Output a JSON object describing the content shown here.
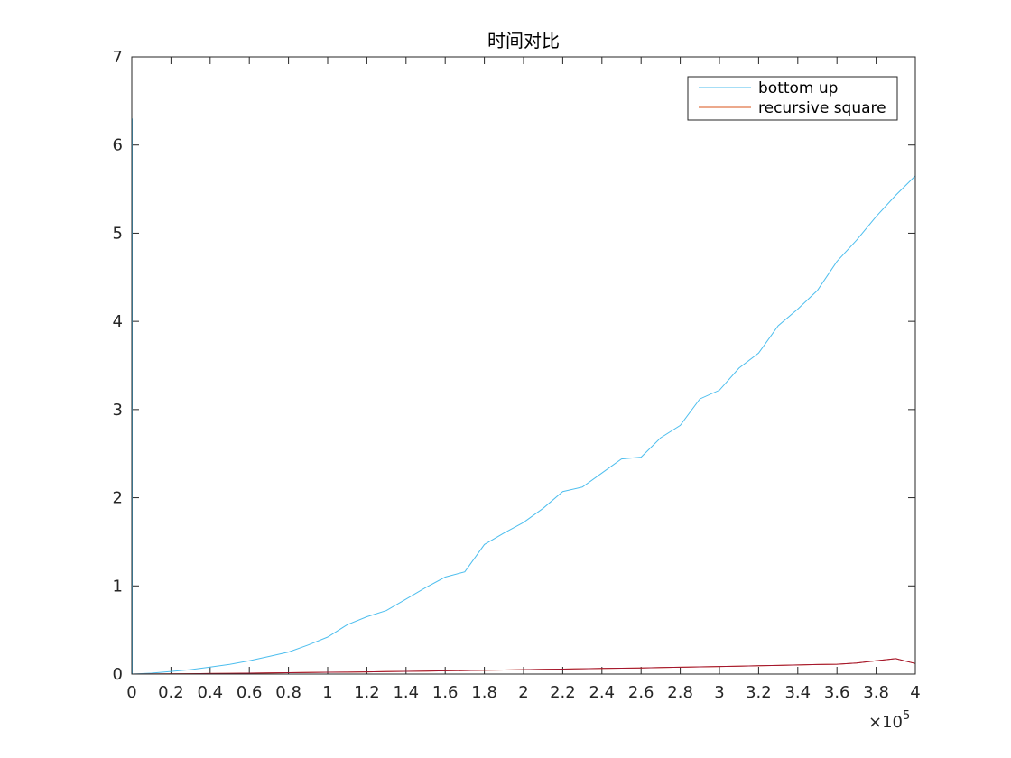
{
  "chart_data": {
    "type": "line",
    "title": "时间对比",
    "xlabel": "",
    "ylabel": "",
    "xlim": [
      0,
      400000
    ],
    "ylim": [
      0,
      7
    ],
    "x_exponent_label": "×10",
    "x_exponent_power": "5",
    "x_ticks": [
      0,
      20000,
      40000,
      60000,
      80000,
      100000,
      120000,
      140000,
      160000,
      180000,
      200000,
      220000,
      240000,
      260000,
      280000,
      300000,
      320000,
      340000,
      360000,
      380000,
      400000
    ],
    "x_tick_labels": [
      "0",
      "0.2",
      "0.4",
      "0.6",
      "0.8",
      "1",
      "1.2",
      "1.4",
      "1.6",
      "1.8",
      "2",
      "2.2",
      "2.4",
      "2.6",
      "2.8",
      "3",
      "3.2",
      "3.4",
      "3.6",
      "3.8",
      "4"
    ],
    "y_ticks": [
      0,
      1,
      2,
      3,
      4,
      5,
      6,
      7
    ],
    "y_tick_labels": [
      "0",
      "1",
      "2",
      "3",
      "4",
      "5",
      "6",
      "7"
    ],
    "legend_position": "top-right",
    "grid": false,
    "x": [
      0,
      10000,
      20000,
      30000,
      40000,
      50000,
      60000,
      70000,
      80000,
      90000,
      100000,
      110000,
      120000,
      130000,
      140000,
      150000,
      160000,
      170000,
      180000,
      190000,
      200000,
      210000,
      220000,
      230000,
      240000,
      250000,
      260000,
      270000,
      280000,
      290000,
      300000,
      310000,
      320000,
      330000,
      340000,
      350000,
      360000,
      370000,
      380000,
      390000,
      400000
    ],
    "series": [
      {
        "name": "bottom up",
        "color": "#4DBEEE",
        "values": [
          0.0,
          0.01,
          0.03,
          0.05,
          0.08,
          0.11,
          0.15,
          0.2,
          0.25,
          0.33,
          0.42,
          0.56,
          0.65,
          0.72,
          0.85,
          0.98,
          1.1,
          1.16,
          1.47,
          1.6,
          1.72,
          1.88,
          2.07,
          2.12,
          2.28,
          2.44,
          2.46,
          2.68,
          2.82,
          3.12,
          3.22,
          3.47,
          3.64,
          3.95,
          4.14,
          4.35,
          4.68,
          4.92,
          5.19,
          5.43,
          5.65
        ]
      },
      {
        "name": "recursive square",
        "color": "#D95319",
        "values": [
          0.0,
          0.001,
          0.003,
          0.004,
          0.006,
          0.008,
          0.01,
          0.012,
          0.015,
          0.017,
          0.02,
          0.022,
          0.025,
          0.028,
          0.031,
          0.034,
          0.037,
          0.04,
          0.043,
          0.046,
          0.05,
          0.053,
          0.056,
          0.06,
          0.063,
          0.067,
          0.07,
          0.074,
          0.078,
          0.082,
          0.086,
          0.09,
          0.094,
          0.098,
          0.103,
          0.108,
          0.112,
          0.125,
          0.15,
          0.175,
          0.12
        ]
      }
    ],
    "overlay_color": "#A2142F"
  }
}
